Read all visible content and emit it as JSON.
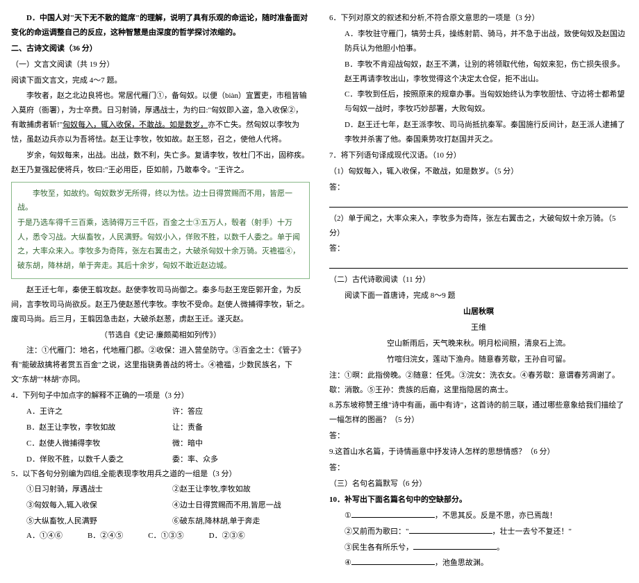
{
  "left": {
    "d_option": "D．中国人对\"天下无不散的筵席\"的理解，说明了具有乐观的命运论，随时准备面对变化的命运调整自己的反应，这种智慧是由深度的哲学探讨浓缩的。",
    "section2": "二、古诗文阅读（36 分）",
    "sub1": "（一）文言文阅读（共 19 分）",
    "read_cmd": "阅读下面文言文，完成 4～7 题。",
    "para1_a": "李牧者，赵之北边良将也。常居代雁门①，备匈奴。以便（biàn）宜置吏，市租皆输入莫府（衙署），为士卒费。日习射骑，厚遇战士，为约曰:\"匈奴即入盗，急入收保②，有敢捕虏者斩!\"",
    "para1_b": "匈奴每入，辄入收保，不敢战。如是数岁，",
    "para1_c": "亦不亡失。然匈奴以李牧为怯，虽赵边兵亦以为吾将怯。赵王让李牧，牧如故。赵王怒，召之，使他人代将。",
    "para2": "岁余，匈奴每来，出战。出战，数不利，失亡多。复请李牧，牧杜门不出，固称疾。赵王乃复强起使将兵，牧曰:\"王必用臣，臣如前，乃敢奉令。\"王许之。",
    "box1": "李牧至，如故约。匈奴数岁无所得，终以为怯。边士日得赏赐而不用，皆愿一战。",
    "box2": "于是乃选车得千三百乘，选骑得万三千匹，百金之士③五万人，彀者（射手）十万人，悉令习战。大纵畜牧，人民满野。匈奴小入，佯败不胜，以数千人委之。单于闻之，大率众来入。李牧多为奇阵，张左右翼击之，大破杀匈奴十余万骑。灭襜褴④，破东胡，降林胡，单于奔走。其后十余岁，匈奴不敢近赵边城。",
    "para3": "赵王迁七年，秦使王翦攻赵。赵使李牧司马尚御之。秦多与赵王宠臣郭开金，为反间，言李牧司马尚欲反。赵王乃使赵葱代李牧。李牧不受命。赵使人微捕得李牧，斩之。废司马尚。后三月，王翦因急击赵，大破杀赵葱，虏赵王迁。遂灭赵。",
    "src": "（节选自《史记·廉颇蔺相如列传》）",
    "notes": "注：①代雁门：地名，代地雁门郡。②收保：进入营垒防守。③百金之士：《管子》有\"能破敌擒将者赏五百金\"之说，这里指骁勇善战的将士。④襜褴，少数民族名，下文\"东胡\"\"林胡\"亦同。",
    "q4": "4．下列句子中加点字的解释不正确的一项是（3 分）",
    "q4a_l": "A．王许之",
    "q4a_r": "许：答应",
    "q4b_l": "B．赵王让李牧，李牧如故",
    "q4b_r": "让：责备",
    "q4c_l": "C．赵使人微捕得李牧",
    "q4c_r": "微：暗中",
    "q4d_l": "D．佯败不胜，以数千人委之",
    "q4d_r": "委：率、众多",
    "q5": "5．以下各句分别编为四组,全能表现李牧用兵之道的一组是（3 分）",
    "q5_1": "①日习射骑，厚遇战士",
    "q5_2": "②赵王让李牧,李牧如故",
    "q5_3": "③匈奴每入,辄入收保",
    "q5_4": "④边士日得赏赐而不用,皆愿一战",
    "q5_5": "⑤大纵畜牧,人民满野",
    "q5_6": "⑥破东胡,降林胡,单于奔走",
    "q5a": "A．①④⑥",
    "q5b": "B．②④⑤",
    "q5c": "C．①③⑤",
    "q5d": "D．②③⑥"
  },
  "right": {
    "q6": "6．下列对原文的叙述和分析,不符合原文意思的一项是（3 分）",
    "q6a": "A．李牧驻守雁门，犒劳士兵，操练射箭、骑马，并不急于出战，致使匈奴及赵国边防兵认为他胆小怕事。",
    "q6b": "B．李牧不肯迎战匈奴，赵王不满，让别的将领取代他，匈奴来犯，伤亡损失很多。赵王再请李牧出山，李牧觉得这个决定太仓促，拒不出山。",
    "q6c": "C．李牧到任后，按照原来的规章办事。当匈奴始终认为李牧胆怯、守边将士都希望与匈奴一战时，李牧巧妙部署，大败匈奴。",
    "q6d": "D．赵王迁七年，赵王派李牧、司马尚抵抗秦军。秦国施行反间计，赵王派人逮捕了李牧并杀害了他。秦国乘势攻打赵国并灭之。",
    "q7": "7．将下列语句译成现代汉语。（10 分）",
    "q7_1": "（1）匈奴每入，辄入收保，不敢战，如是数岁。（5 分）",
    "q7_2": "（2）单于闻之，大率众来入，李牧多为奇阵，张左右翼击之，大破匈奴十余万骑。（5 分）",
    "sub2": "（二）古代诗歌阅读（11 分）",
    "read2": "阅读下面一首唐诗，完成 8～9 题",
    "poem_title": "山居秋暝",
    "poem_author": "王维",
    "poem_l1": "空山新雨后，天气晚来秋。明月松间照，清泉石上流。",
    "poem_l2": "竹喧归浣女，莲动下渔舟。随意春芳歇，王孙自可留。",
    "notes2": "注：①暝：此指傍晚。②随意：任凭。③浣女：洗衣女。④春芳歇：意谓春芳凋谢了。歇：消散。⑤王孙：贵族的后裔，这里指隐居的高士。",
    "q8": "8.苏东坡称赞王维\"诗中有画，画中有诗\"，这首诗的前三联，通过哪些意象给我们描绘了一幅怎样的图画？（5 分）",
    "ans_label": "答：",
    "q9": "9.这首山水名篇，于诗情画意中抒发诗人怎样的思想情感？（6 分）",
    "sub3": "（三）名句名篇默写（6 分）",
    "q10": "10．补写出下面名篇名句中的空缺部分。",
    "q10_1a": "①",
    "q10_1b": "，不思其反。反是不思，亦已焉哉！",
    "q10_2a": "②又前而为歌曰：\"",
    "q10_2b": "，壮士一去兮不复还！\"",
    "q10_3a": "③民生各有所乐兮，",
    "q10_3b": "。",
    "q10_4a": "④",
    "q10_4b": "，池鱼思故渊。"
  }
}
